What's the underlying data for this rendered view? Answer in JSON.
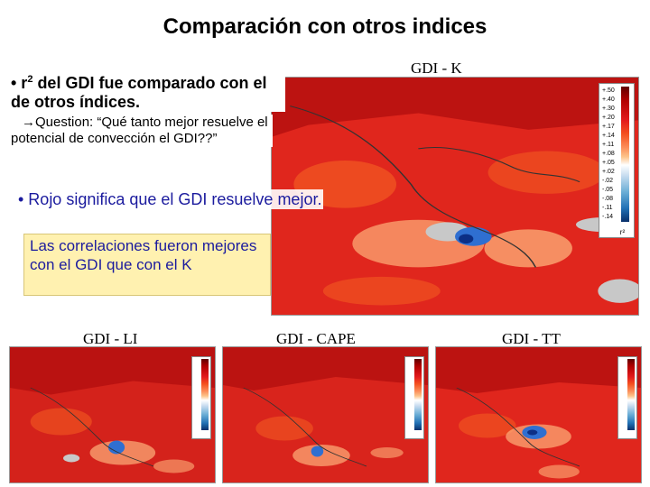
{
  "title": "Comparación con otros indices",
  "bullets": {
    "b1_prefix": "• r",
    "b1_sup": "2",
    "b1_suffix": " del GDI fue comparado con el de otros índices.",
    "b2_arrow": "→",
    "b2_text": "Question: “Qué tanto mejor resuelve el potencial de convección el GDI??”",
    "b3": "• Rojo significa que el GDI resuelve mejor."
  },
  "note": "Las correlaciones fueron mejores con el GDI que con el K",
  "maps": {
    "main": {
      "label": "GDI - K"
    },
    "li": {
      "label": "GDI - LI"
    },
    "cape": {
      "label": "GDI - CAPE"
    },
    "tt": {
      "label": "GDI - TT"
    }
  },
  "legend": {
    "ticks": [
      "+.50",
      "+.40",
      "+.30",
      "+.20",
      "+.17",
      "+.14",
      "+.11",
      "+.08",
      "+.05",
      "+.02",
      "-.02",
      "-.05",
      "-.08",
      "-.11",
      "-.14"
    ],
    "label": "r²"
  },
  "colors": {
    "dark_red": "#b30f0f",
    "red": "#e0261d",
    "orange": "#f25a22",
    "light": "#fdb17a",
    "blue": "#2f6fd1",
    "grey": "#c8c8c8",
    "note_text": "#1b1b9e",
    "note_bg": "#fff1b0"
  }
}
